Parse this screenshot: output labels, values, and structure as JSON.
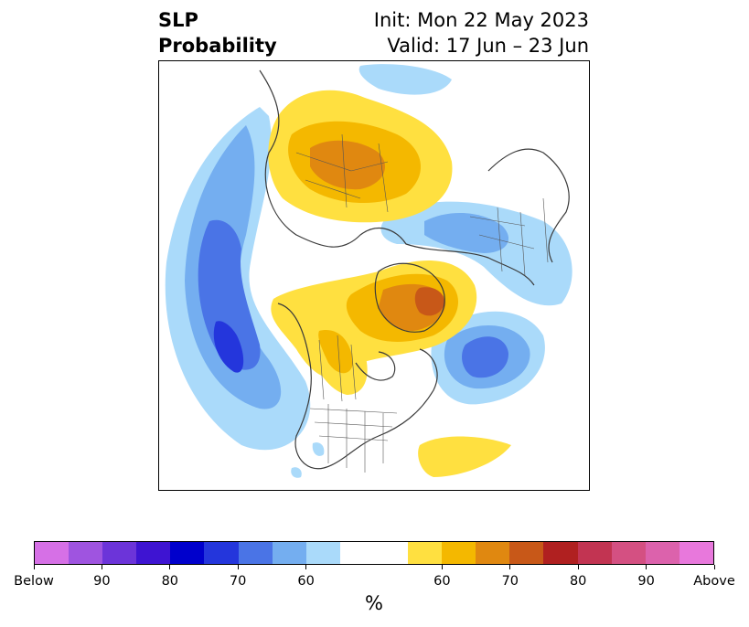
{
  "title": {
    "left_line1": "SLP",
    "left_line2": "Probability",
    "right_line1": "Init: Mon 22 May 2023",
    "right_line2": "Valid: 17 Jun – 23 Jun"
  },
  "colorbar": {
    "colors": [
      "#d670e6",
      "#9f54e0",
      "#6c34d9",
      "#3e14d2",
      "#0000cc",
      "#2436dc",
      "#4a74e6",
      "#74aef0",
      "#aadafa",
      "#ffffff",
      "#ffe040",
      "#f4b800",
      "#e08810",
      "#c85818",
      "#b02020",
      "#c23452",
      "#d45082",
      "#dc62ac",
      "#e878dc"
    ],
    "tick_labels": [
      "Below",
      "90",
      "80",
      "70",
      "60",
      "60",
      "70",
      "80",
      "90",
      "Above"
    ],
    "unit": "%"
  },
  "map": {
    "projection": "polar stereographic (Northern Hemisphere)",
    "anomalies": [
      {
        "region": "North Pacific / Aleutians",
        "category": "below",
        "max_prob": 80
      },
      {
        "region": "North Atlantic south of Greenland",
        "category": "below",
        "max_prob": 70
      },
      {
        "region": "Western Russia / Eastern Europe",
        "category": "below",
        "max_prob": 60
      },
      {
        "region": "Siberia / East Asia",
        "category": "above",
        "max_prob": 70
      },
      {
        "region": "Greenland / Arctic Canada",
        "category": "above",
        "max_prob": 80
      },
      {
        "region": "Western Canada",
        "category": "above",
        "max_prob": 70
      },
      {
        "region": "Subtropical Atlantic",
        "category": "above",
        "max_prob": 60
      }
    ]
  }
}
